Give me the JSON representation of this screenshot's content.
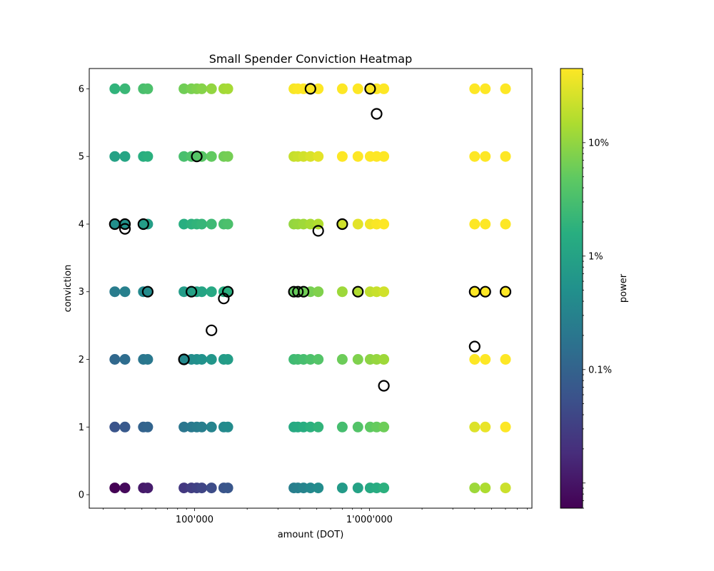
{
  "chart_data": {
    "type": "scatter",
    "title": "Small Spender Conviction Heatmap",
    "xlabel": "amount (DOT)",
    "ylabel": "conviction",
    "xscale": "log",
    "xlim": [
      25000,
      8500000
    ],
    "ylim": [
      -0.2,
      6.3
    ],
    "xticks": [
      {
        "value": 100000,
        "label": "100'000"
      },
      {
        "value": 1000000,
        "label": "1'000'000"
      }
    ],
    "yticks": [
      0,
      1,
      2,
      3,
      4,
      5,
      6
    ],
    "grid": false,
    "colorbar": {
      "label": "power",
      "scale": "log",
      "colormap": "viridis",
      "range": [
        6e-05,
        0.45
      ],
      "ticks": [
        {
          "value": 0.001,
          "label": "0.1%"
        },
        {
          "value": 0.01,
          "label": "1%"
        },
        {
          "value": 0.1,
          "label": "10%"
        }
      ]
    },
    "amounts": [
      35000,
      40000,
      51000,
      54000,
      87000,
      96000,
      103000,
      110000,
      125000,
      147000,
      155000,
      370000,
      390000,
      420000,
      460000,
      510000,
      700000,
      860000,
      1010000,
      1100000,
      1210000,
      4000000,
      4600000,
      6000000
    ],
    "conviction_levels": [
      0.1,
      1,
      2,
      3,
      4,
      5,
      6
    ],
    "series": [
      {
        "name": "grid",
        "marker": "filled circle, colored by power"
      },
      {
        "name": "highlighted",
        "marker": "open black circle",
        "points": [
          {
            "x": 35000,
            "y": 4
          },
          {
            "x": 40000,
            "y": 4
          },
          {
            "x": 40000,
            "y": 3.93
          },
          {
            "x": 51000,
            "y": 4
          },
          {
            "x": 54000,
            "y": 3
          },
          {
            "x": 87000,
            "y": 2
          },
          {
            "x": 96000,
            "y": 3
          },
          {
            "x": 103000,
            "y": 5
          },
          {
            "x": 125000,
            "y": 2.43
          },
          {
            "x": 147000,
            "y": 2.9
          },
          {
            "x": 155000,
            "y": 3
          },
          {
            "x": 370000,
            "y": 3
          },
          {
            "x": 390000,
            "y": 3
          },
          {
            "x": 420000,
            "y": 3
          },
          {
            "x": 460000,
            "y": 6
          },
          {
            "x": 510000,
            "y": 3.9
          },
          {
            "x": 700000,
            "y": 4
          },
          {
            "x": 860000,
            "y": 3
          },
          {
            "x": 1010000,
            "y": 6
          },
          {
            "x": 1100000,
            "y": 5.63
          },
          {
            "x": 1210000,
            "y": 1.61
          },
          {
            "x": 4000000,
            "y": 3
          },
          {
            "x": 4000000,
            "y": 2.19
          },
          {
            "x": 4600000,
            "y": 3
          },
          {
            "x": 6000000,
            "y": 3
          }
        ]
      }
    ]
  }
}
